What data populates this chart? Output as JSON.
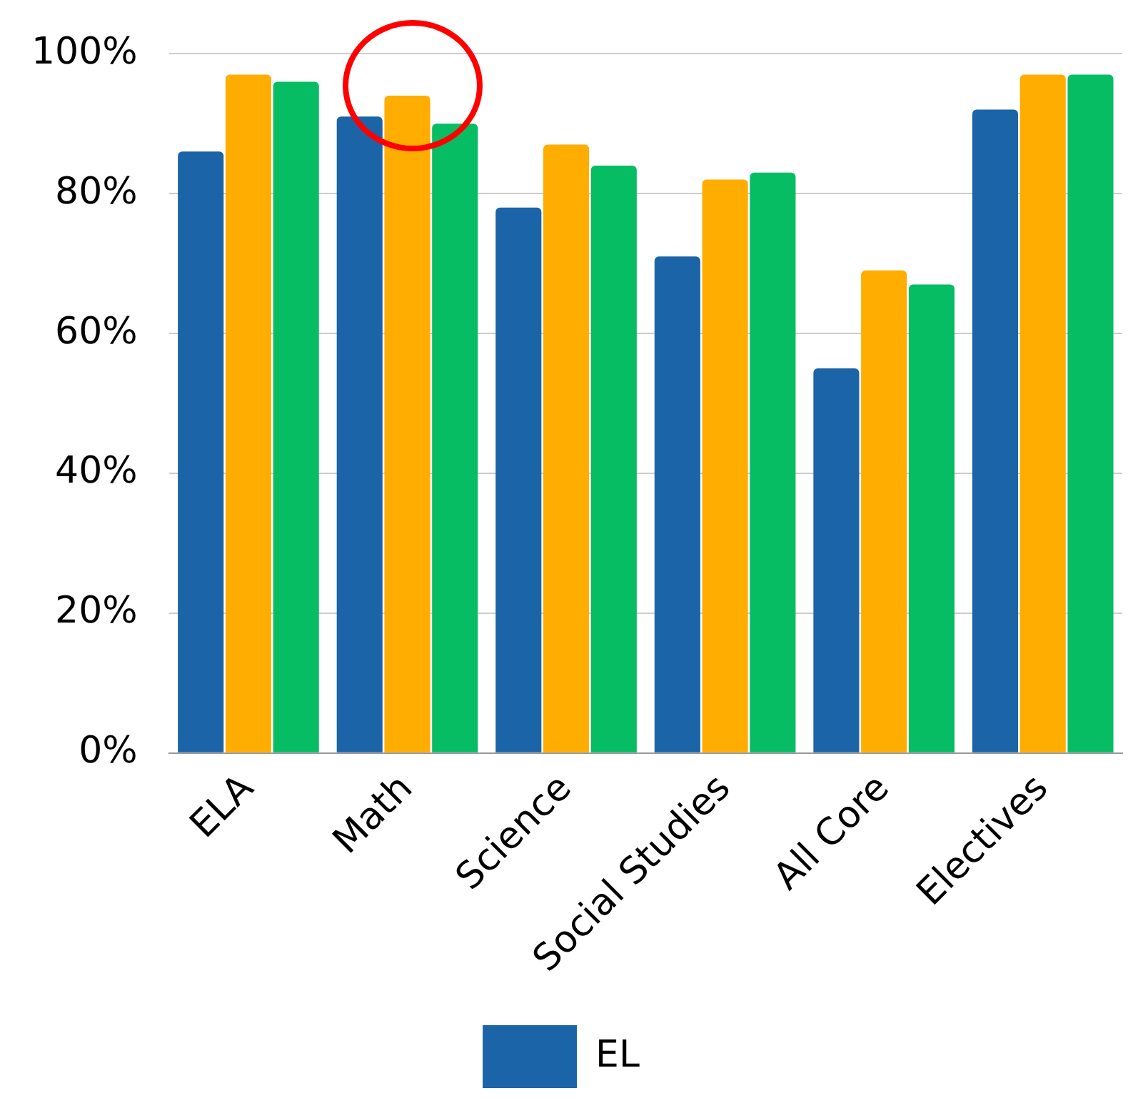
{
  "chart_data": {
    "type": "bar",
    "categories": [
      "ELA",
      "Math",
      "Science",
      "Social Studies",
      "All Core",
      "Electives"
    ],
    "series": [
      {
        "name": "EL",
        "color": "#1b64a8",
        "values": [
          86,
          91,
          78,
          71,
          55,
          92
        ]
      },
      {
        "color": "#ffad00",
        "values": [
          97,
          94,
          87,
          82,
          69,
          97
        ]
      },
      {
        "color": "#06bd64",
        "values": [
          96,
          90,
          84,
          83,
          67,
          97
        ]
      }
    ],
    "ylim": [
      0,
      100
    ],
    "yticks": [
      {
        "value": 0,
        "label": "0%"
      },
      {
        "value": 20,
        "label": "20%"
      },
      {
        "value": 40,
        "label": "40%"
      },
      {
        "value": 60,
        "label": "60%"
      },
      {
        "value": 80,
        "label": "80%"
      },
      {
        "value": 100,
        "label": "100%"
      }
    ],
    "grid": "y",
    "legend": "bottom"
  }
}
